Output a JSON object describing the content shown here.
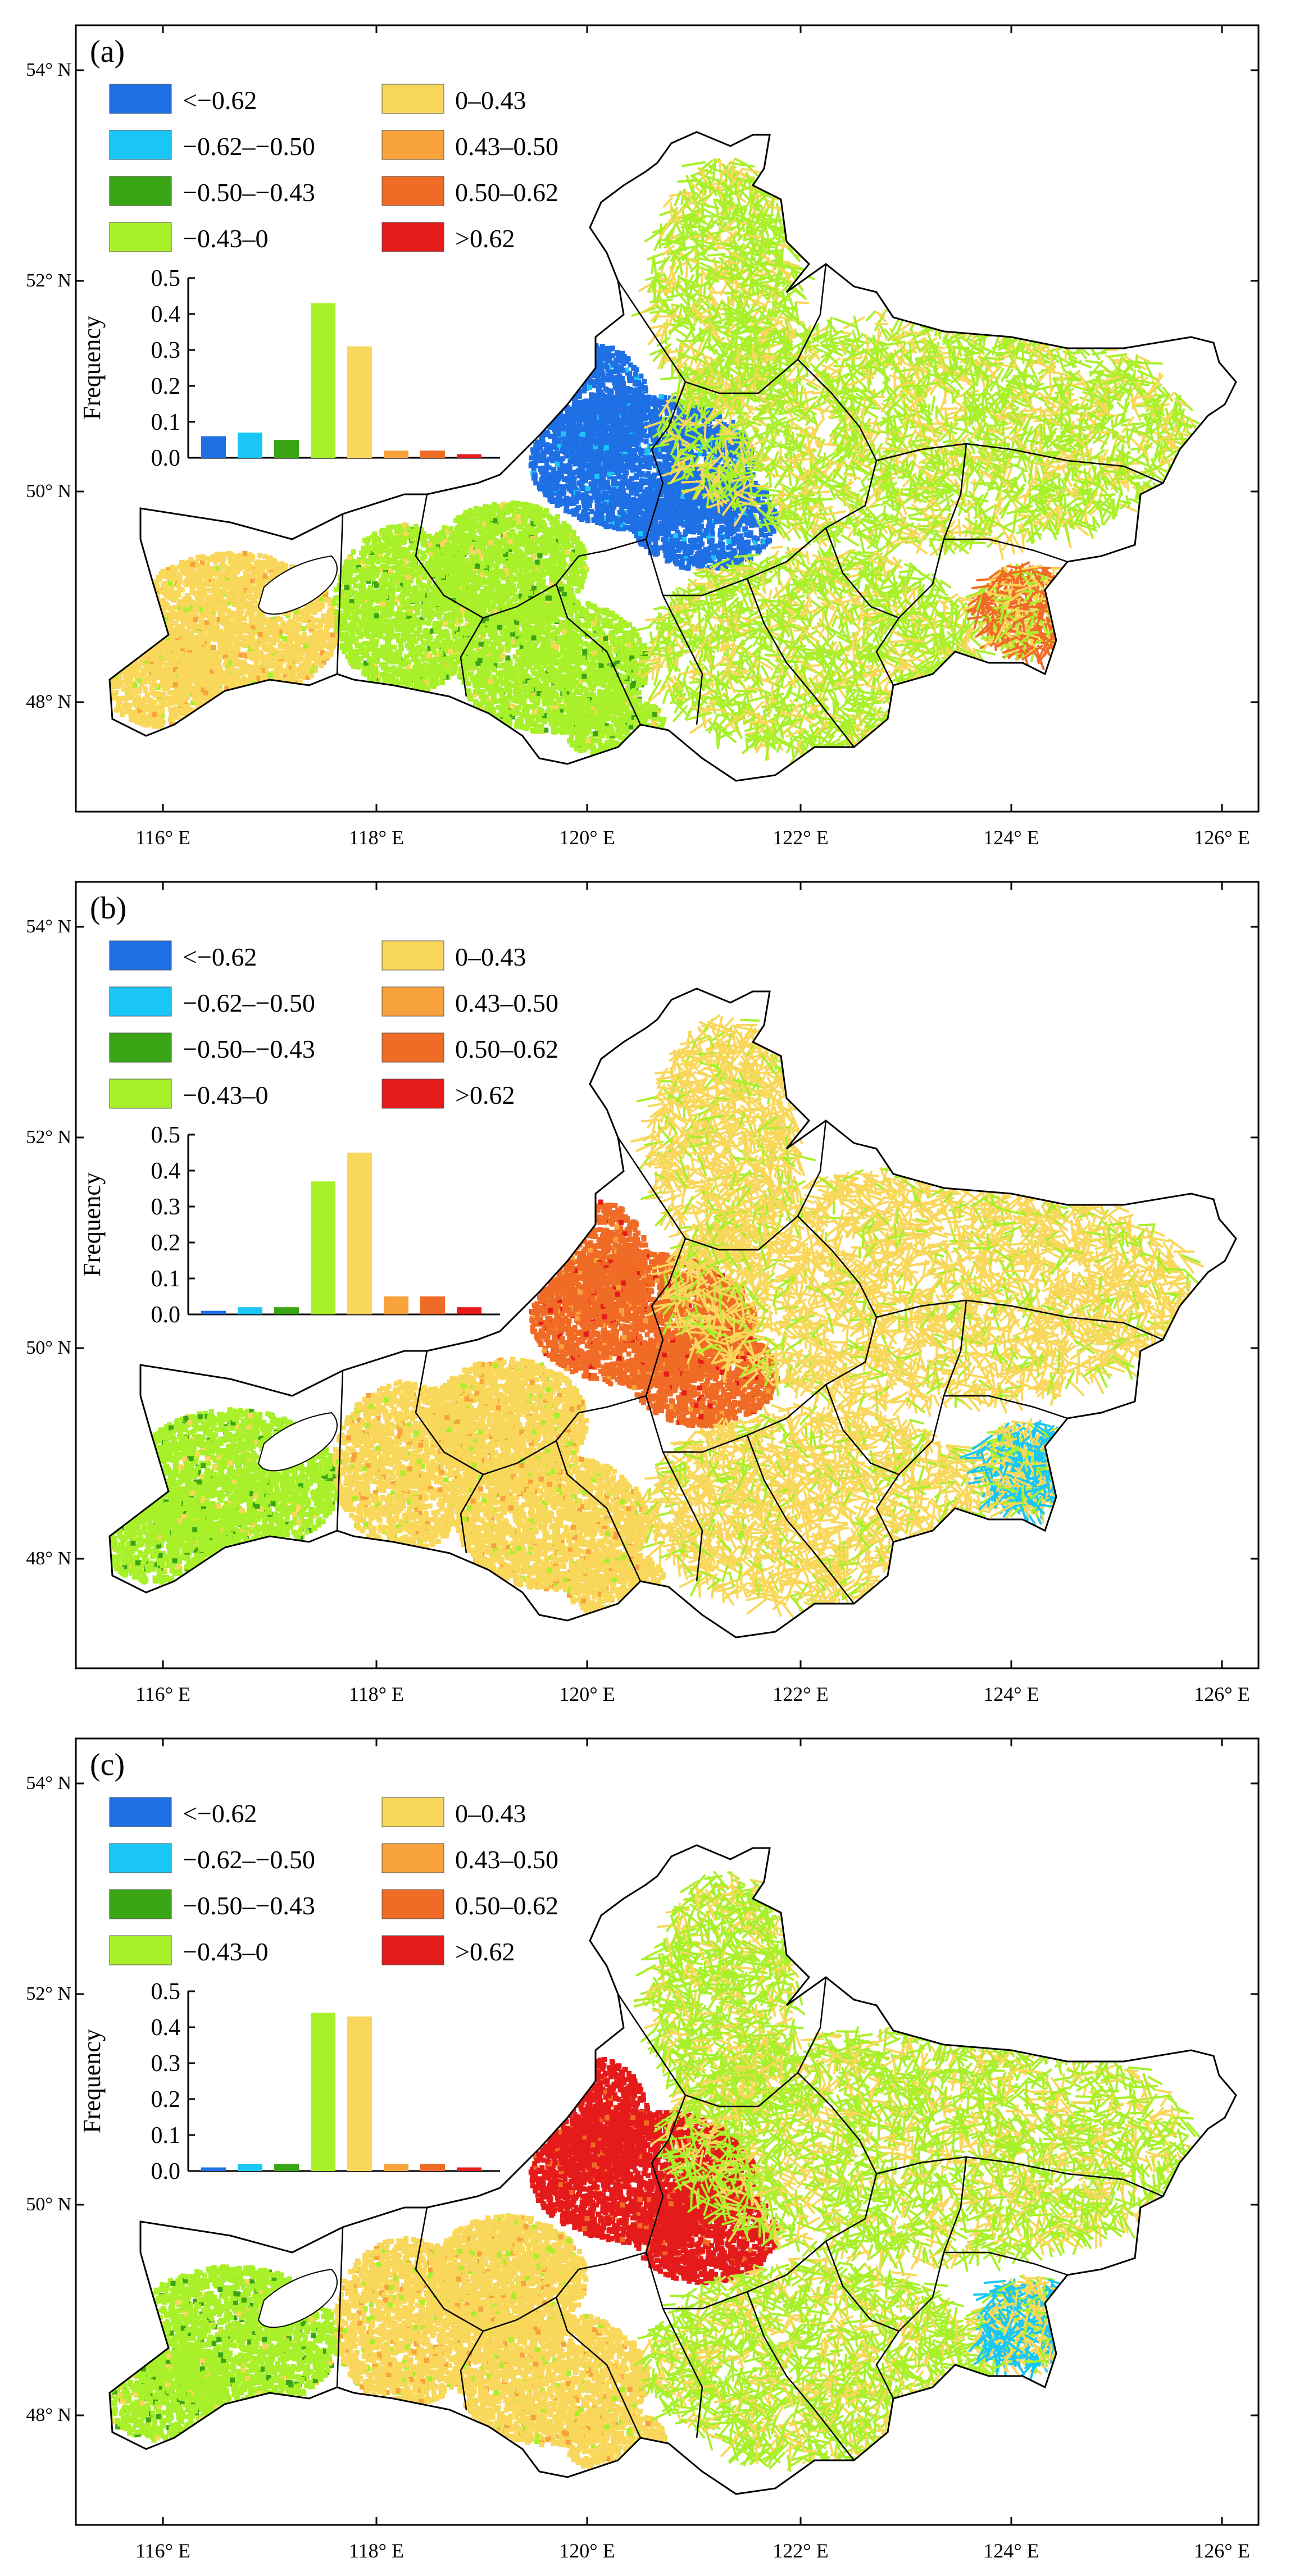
{
  "axes": {
    "lat_labels": [
      "54° N",
      "52° N",
      "50° N",
      "48° N"
    ],
    "lon_labels": [
      "116° E",
      "118° E",
      "120° E",
      "122° E",
      "124° E",
      "126° E"
    ],
    "lat_range": [
      47.0,
      54.3
    ],
    "lon_range": [
      115.3,
      126.3
    ]
  },
  "legend": {
    "items": [
      {
        "label": "<−0.62",
        "color": "#1f6fe5"
      },
      {
        "label": "−0.62–−0.50",
        "color": "#1ac6f5"
      },
      {
        "label": "−0.50–−0.43",
        "color": "#3aa514"
      },
      {
        "label": "−0.43–0",
        "color": "#a8f02a"
      },
      {
        "label": "0–0.43",
        "color": "#f8d75a"
      },
      {
        "label": "0.43–0.50",
        "color": "#f7a23c"
      },
      {
        "label": "0.50–0.62",
        "color": "#f06b26"
      },
      {
        "label": ">0.62",
        "color": "#e51b1b"
      }
    ]
  },
  "histogram": {
    "ylabel": "Frequency",
    "yticks": [
      "0.5",
      "0.4",
      "0.3",
      "0.2",
      "0.1",
      "0.0"
    ]
  },
  "chart_data": [
    {
      "type": "bar",
      "title": "(a)",
      "ylabel": "Frequency",
      "ylim": [
        0,
        0.5
      ],
      "categories": [
        "<−0.62",
        "−0.62–−0.50",
        "−0.50–−0.43",
        "−0.43–0",
        "0–0.43",
        "0.43–0.50",
        "0.50–0.62",
        ">0.62"
      ],
      "values": [
        0.06,
        0.07,
        0.05,
        0.43,
        0.31,
        0.02,
        0.02,
        0.01
      ]
    },
    {
      "type": "bar",
      "title": "(b)",
      "ylabel": "Frequency",
      "ylim": [
        0,
        0.5
      ],
      "categories": [
        "<−0.62",
        "−0.62–−0.50",
        "−0.50–−0.43",
        "−0.43–0",
        "0–0.43",
        "0.43–0.50",
        "0.50–0.62",
        ">0.62"
      ],
      "values": [
        0.01,
        0.02,
        0.02,
        0.37,
        0.45,
        0.05,
        0.05,
        0.02
      ]
    },
    {
      "type": "bar",
      "title": "(c)",
      "ylabel": "Frequency",
      "ylim": [
        0,
        0.5
      ],
      "categories": [
        "<−0.62",
        "−0.62–−0.50",
        "−0.50–−0.43",
        "−0.43–0",
        "0–0.43",
        "0.43–0.50",
        "0.50–0.62",
        ">0.62"
      ],
      "values": [
        0.01,
        0.02,
        0.02,
        0.44,
        0.43,
        0.02,
        0.02,
        0.01
      ]
    }
  ],
  "map_dominance": [
    {
      "west": "0–0.43",
      "central": "−0.43–0",
      "band": "<−0.62",
      "east": "−0.43–0",
      "hotspot": "0.50–0.62"
    },
    {
      "west": "−0.43–0",
      "central": "0–0.43",
      "band": "0.50–0.62",
      "east": "0–0.43",
      "hotspot": "−0.62–−0.50"
    },
    {
      "west": "−0.43–0",
      "central": "0–0.43",
      "band": ">0.62",
      "east": "−0.43–0",
      "hotspot": "−0.62–−0.50"
    }
  ]
}
